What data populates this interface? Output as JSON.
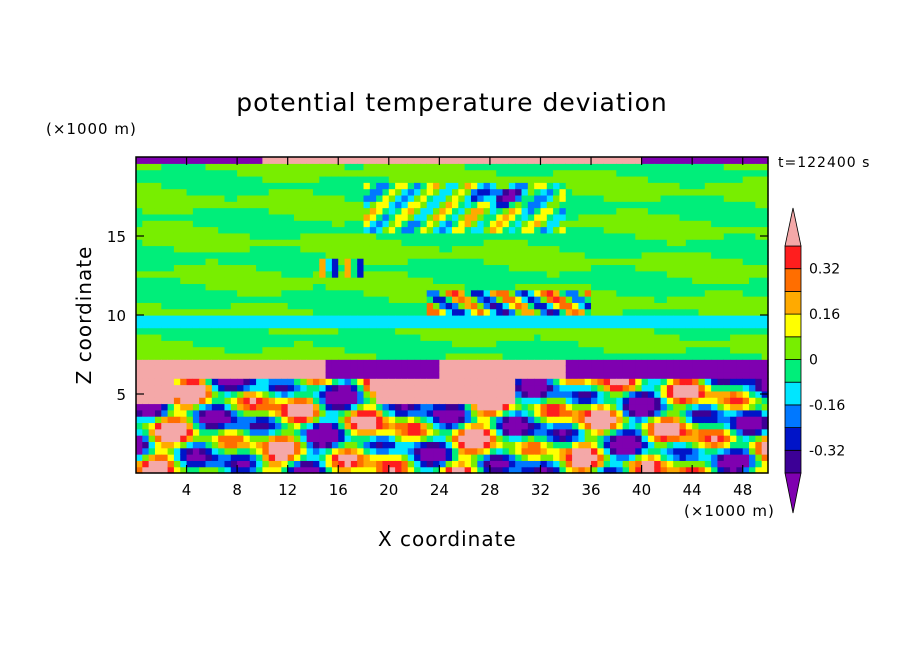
{
  "chart_data": {
    "type": "heatmap",
    "title": "potential temperature deviation",
    "xlabel": "X coordinate",
    "ylabel": "Z coordinate",
    "x_unit_label": "(×1000 m)",
    "y_unit_label": "(×1000 m)",
    "time_label": "t=122400 s",
    "xlim": [
      0,
      50
    ],
    "ylim": [
      0,
      20
    ],
    "x_ticks": [
      "4",
      "8",
      "12",
      "16",
      "20",
      "24",
      "28",
      "32",
      "36",
      "40",
      "44",
      "48"
    ],
    "y_ticks": [
      "5",
      "10",
      "15"
    ],
    "colorbar": {
      "levels": [
        -0.4,
        -0.32,
        -0.24,
        -0.16,
        -0.08,
        0,
        0.08,
        0.16,
        0.24,
        0.32,
        0.4
      ],
      "labels": [
        "0.32",
        "0.16",
        "0",
        "-0.16",
        "-0.32"
      ],
      "label_values": [
        0.32,
        0.16,
        0,
        -0.16,
        -0.32
      ],
      "colors": [
        "#7f00b0",
        "#3c0096",
        "#0014c8",
        "#0078ff",
        "#00e6ff",
        "#00ee7a",
        "#78ee00",
        "#ffff00",
        "#ffaa00",
        "#ff6e00",
        "#ff1e1e",
        "#f4a8a8"
      ],
      "extend": "both"
    }
  }
}
